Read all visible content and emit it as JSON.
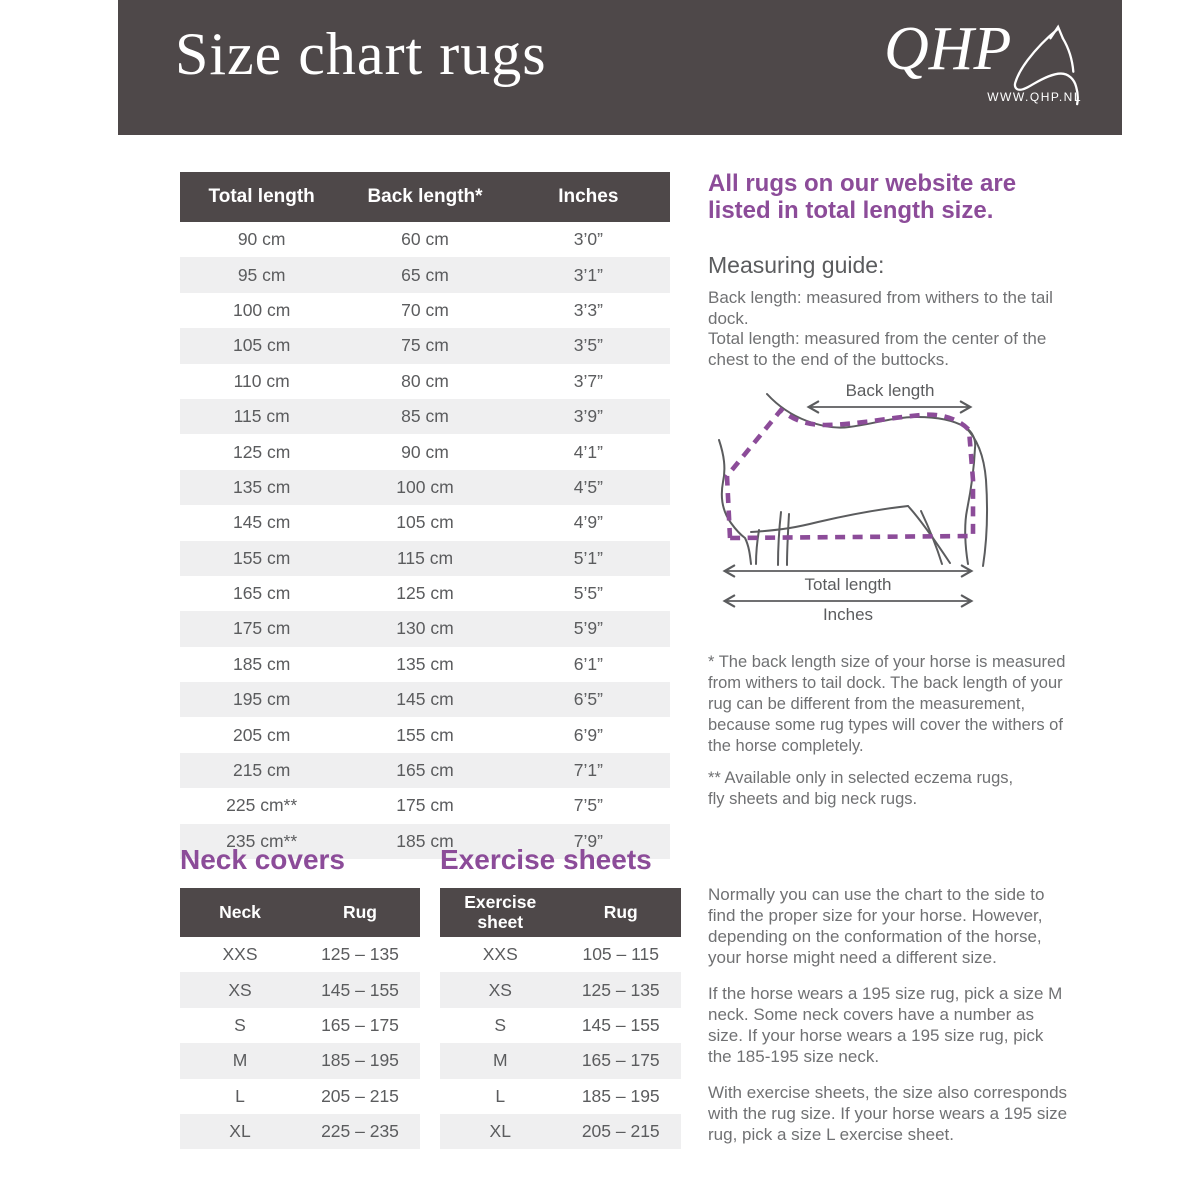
{
  "colors": {
    "banner_dark": "#4e4849",
    "accent_purple": "#8c4c99",
    "row_alt_gray": "#efeff0",
    "table_text_gray": "#5b5c5e",
    "body_text_gray": "#707173"
  },
  "header": {
    "title": "Size chart rugs",
    "logo": {
      "brand": "QHP",
      "website": "WWW.QHP.NL"
    }
  },
  "size_table": {
    "columns": [
      "Total length",
      "Back length*",
      "Inches"
    ],
    "rows": [
      [
        "90 cm",
        "60 cm",
        "3’0”"
      ],
      [
        "95 cm",
        "65 cm",
        "3’1”"
      ],
      [
        "100 cm",
        "70 cm",
        "3’3”"
      ],
      [
        "105 cm",
        "75 cm",
        "3’5”"
      ],
      [
        "110 cm",
        "80 cm",
        "3’7”"
      ],
      [
        "115 cm",
        "85 cm",
        "3’9”"
      ],
      [
        "125 cm",
        "90 cm",
        "4’1”"
      ],
      [
        "135 cm",
        "100 cm",
        "4’5”"
      ],
      [
        "145 cm",
        "105 cm",
        "4’9”"
      ],
      [
        "155 cm",
        "115 cm",
        "5’1”"
      ],
      [
        "165 cm",
        "125 cm",
        "5’5”"
      ],
      [
        "175 cm",
        "130 cm",
        "5’9”"
      ],
      [
        "185 cm",
        "135 cm",
        "6’1”"
      ],
      [
        "195 cm",
        "145 cm",
        "6’5”"
      ],
      [
        "205 cm",
        "155 cm",
        "6’9”"
      ],
      [
        "215 cm",
        "165 cm",
        "7’1”"
      ],
      [
        "225 cm**",
        "175 cm",
        "7’5”"
      ],
      [
        "235 cm**",
        "185 cm",
        "7’9”"
      ]
    ]
  },
  "intro": {
    "headline": "All rugs on our website are\nlisted in total length size.",
    "guide_title": "Measuring guide:",
    "guide_text": "Back length: measured from withers to the tail dock.\nTotal length: measured from the center of the chest to the end of the buttocks."
  },
  "diagram": {
    "back_length_label": "Back length",
    "total_length_label": "Total length",
    "inches_label": "Inches"
  },
  "footnotes": {
    "back_length_note": "* The back length size of your horse is measured from withers to tail dock. The back length of your rug can be different from the measurement, because some rug types will cover the withers of the horse completely.",
    "availability_note": "** Available only in selected eczema rugs,\nfly sheets and big neck rugs."
  },
  "neck_covers": {
    "title": "Neck covers",
    "columns": [
      "Neck",
      "Rug"
    ],
    "rows": [
      [
        "XXS",
        "125 – 135"
      ],
      [
        "XS",
        "145 – 155"
      ],
      [
        "S",
        "165 – 175"
      ],
      [
        "M",
        "185 – 195"
      ],
      [
        "L",
        "205 – 215"
      ],
      [
        "XL",
        "225 – 235"
      ]
    ]
  },
  "exercise_sheets": {
    "title": "Exercise sheets",
    "columns": [
      "Exercise sheet",
      "Rug"
    ],
    "rows": [
      [
        "XXS",
        "105 – 115"
      ],
      [
        "XS",
        "125 – 135"
      ],
      [
        "S",
        "145 – 155"
      ],
      [
        "M",
        "165 – 175"
      ],
      [
        "L",
        "185 – 195"
      ],
      [
        "XL",
        "205 – 215"
      ]
    ]
  },
  "advice": {
    "p1": "Normally you can use the chart to the side to find the proper size for your horse.  However, depending on the conformation of the horse, your horse might need a different size.",
    "p2": "If the horse wears a 195 size rug, pick a size M neck. Some neck covers have a number as size. If your horse wears a 195 size rug, pick the 185-195 size neck.",
    "p3": "With exercise sheets, the size also corresponds with the rug size. If your horse wears a 195 size rug, pick a size L exercise sheet."
  }
}
